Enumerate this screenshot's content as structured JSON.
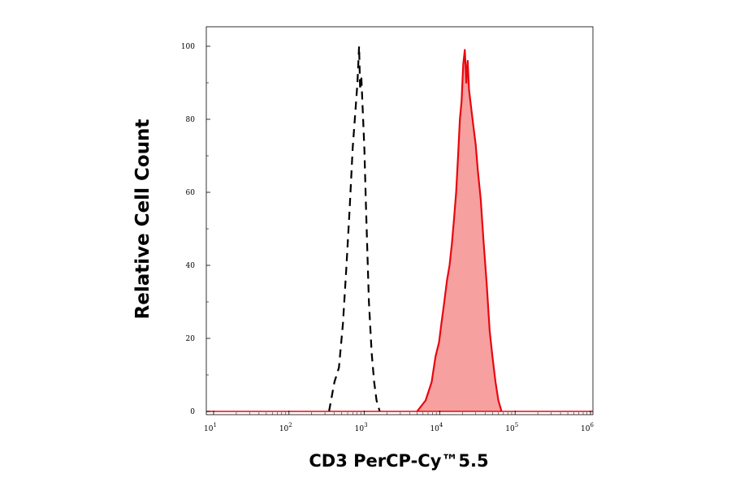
{
  "chart_data": {
    "type": "area",
    "title": "",
    "xlabel": "CD3 PerCP-Cy™5.5",
    "ylabel": "Relative Cell Count",
    "x_scale": "log",
    "xlim": [
      10,
      1000000
    ],
    "ylim": [
      0,
      104
    ],
    "x_ticks": [
      {
        "value": 10,
        "base": "10",
        "exp": "1"
      },
      {
        "value": 100,
        "base": "10",
        "exp": "2"
      },
      {
        "value": 1000,
        "base": "10",
        "exp": "3"
      },
      {
        "value": 10000,
        "base": "10",
        "exp": "4"
      },
      {
        "value": 100000,
        "base": "10",
        "exp": "5"
      },
      {
        "value": 1000000,
        "base": "10",
        "exp": "6"
      }
    ],
    "y_ticks": [
      0,
      20,
      40,
      60,
      80,
      100
    ],
    "grid": false,
    "legend": "none",
    "series": [
      {
        "style": "dashed",
        "color": "#000000",
        "fill": "none",
        "x": [
          340,
          400,
          460,
          520,
          580,
          640,
          700,
          760,
          810,
          850,
          880,
          910,
          950,
          1000,
          1050,
          1100,
          1150,
          1250,
          1350,
          1450,
          1600
        ],
        "y": [
          0,
          8,
          12,
          24,
          40,
          56,
          72,
          82,
          90,
          100,
          88,
          92,
          83,
          72,
          56,
          43,
          30,
          16,
          8,
          3,
          0
        ]
      },
      {
        "style": "solid",
        "color": "#e8070e",
        "fill": "#f6a0a0",
        "x": [
          5000,
          6500,
          7800,
          8800,
          9800,
          10500,
          11500,
          12500,
          13500,
          14500,
          15500,
          16500,
          17500,
          18500,
          19500,
          20500,
          21500,
          22500,
          23500,
          24500,
          25500,
          26500,
          28000,
          30000,
          32000,
          35000,
          38000,
          42000,
          46000,
          50000,
          55000,
          60000,
          66000
        ],
        "y": [
          0,
          3,
          8,
          15,
          19,
          24,
          30,
          36,
          40,
          46,
          53,
          60,
          70,
          80,
          85,
          95,
          99,
          90,
          96,
          88,
          85,
          82,
          78,
          73,
          66,
          58,
          47,
          35,
          22,
          15,
          8,
          3,
          0
        ]
      }
    ]
  }
}
